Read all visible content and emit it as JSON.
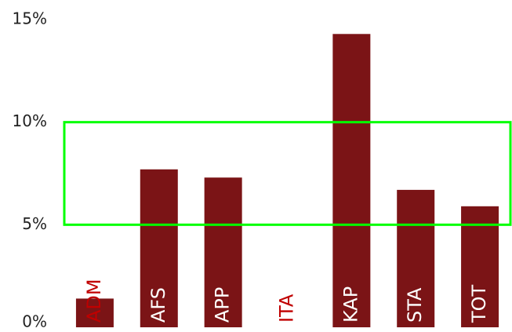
{
  "chart_data": {
    "type": "bar",
    "categories": [
      "ADM",
      "AFS",
      "APP",
      "ITA",
      "KAP",
      "STA",
      "TOT"
    ],
    "values": [
      1.4,
      7.7,
      7.3,
      0,
      14.3,
      6.7,
      5.9
    ],
    "color": "#7b1416",
    "label_colors": [
      "#c00000",
      "#ffffff",
      "#ffffff",
      "#c00000",
      "#ffffff",
      "#ffffff",
      "#ffffff"
    ],
    "ylim": [
      0,
      15
    ],
    "yticks": [
      {
        "value": 0,
        "label": "0%"
      },
      {
        "value": 5,
        "label": "5%"
      },
      {
        "value": 10,
        "label": "10%"
      },
      {
        "value": 15,
        "label": "15%"
      }
    ],
    "grid": false,
    "highlight": {
      "from": 5,
      "to": 10,
      "color": "#00ff00"
    }
  }
}
